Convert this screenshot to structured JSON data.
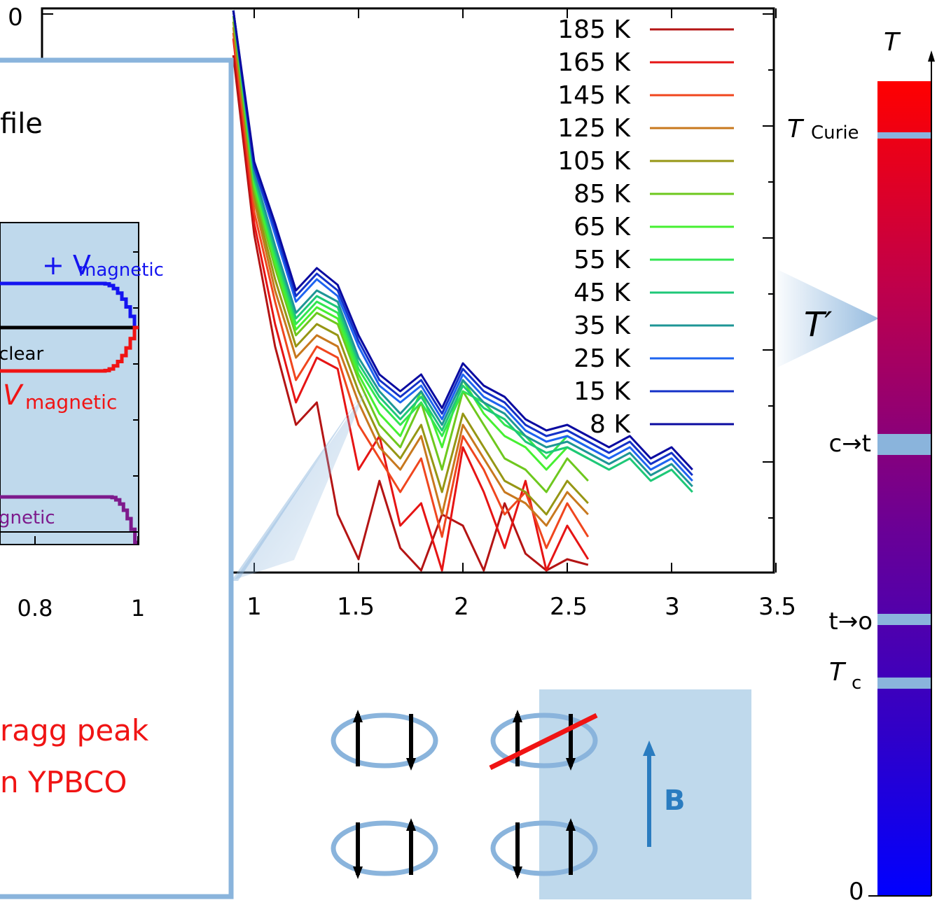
{
  "main_chart": {
    "x_tick_labels": [
      "1",
      "1.5",
      "2",
      "2.5",
      "3",
      "3.5"
    ],
    "y_tick_top": "0"
  },
  "chart_data": {
    "type": "line",
    "x_ticks": [
      1,
      1.5,
      2,
      2.5,
      3,
      3.5
    ],
    "xlim": [
      0.9,
      3.5
    ],
    "grid": false,
    "legend_position": "top-right",
    "series": [
      {
        "name": "185 K",
        "color": "#b41414",
        "x": [
          0.9,
          1.0,
          1.1,
          1.2,
          1.3,
          1.4,
          1.5,
          1.6,
          1.7,
          1.8,
          1.9,
          2.0,
          2.1,
          2.2,
          2.3,
          2.4,
          2.5,
          2.6
        ],
        "y": [
          0.92,
          0.6,
          0.4,
          0.26,
          0.3,
          0.1,
          0.02,
          0.16,
          0.04,
          0.0,
          0.1,
          0.08,
          0.0,
          0.12,
          0.03,
          0.0,
          0.02,
          0.01
        ]
      },
      {
        "name": "165 K",
        "color": "#e61414",
        "x": [
          0.9,
          1.0,
          1.1,
          1.2,
          1.3,
          1.4,
          1.5,
          1.6,
          1.7,
          1.8,
          1.9,
          2.0,
          2.1,
          2.2,
          2.3,
          2.4,
          2.5,
          2.6
        ],
        "y": [
          0.95,
          0.62,
          0.44,
          0.3,
          0.38,
          0.36,
          0.18,
          0.24,
          0.08,
          0.12,
          0.0,
          0.22,
          0.14,
          0.04,
          0.16,
          0.0,
          0.08,
          0.02
        ]
      },
      {
        "name": "145 K",
        "color": "#f0461e",
        "x": [
          0.9,
          1.0,
          1.1,
          1.2,
          1.3,
          1.4,
          1.5,
          1.6,
          1.7,
          1.8,
          1.9,
          2.0,
          2.1,
          2.2,
          2.3,
          2.4,
          2.5,
          2.6
        ],
        "y": [
          0.96,
          0.64,
          0.48,
          0.34,
          0.4,
          0.38,
          0.26,
          0.2,
          0.14,
          0.2,
          0.06,
          0.24,
          0.18,
          0.1,
          0.14,
          0.04,
          0.12,
          0.06
        ]
      },
      {
        "name": "125 K",
        "color": "#c8781e",
        "x": [
          0.9,
          1.0,
          1.1,
          1.2,
          1.3,
          1.4,
          1.5,
          1.6,
          1.7,
          1.8,
          1.9,
          2.0,
          2.1,
          2.2,
          2.3,
          2.4,
          2.5,
          2.6
        ],
        "y": [
          0.97,
          0.66,
          0.5,
          0.38,
          0.42,
          0.4,
          0.3,
          0.22,
          0.18,
          0.24,
          0.1,
          0.26,
          0.2,
          0.14,
          0.12,
          0.08,
          0.14,
          0.1
        ]
      },
      {
        "name": "105 K",
        "color": "#969614",
        "x": [
          0.9,
          1.0,
          1.1,
          1.2,
          1.3,
          1.4,
          1.5,
          1.6,
          1.7,
          1.8,
          1.9,
          2.0,
          2.1,
          2.2,
          2.3,
          2.4,
          2.5,
          2.6
        ],
        "y": [
          0.98,
          0.67,
          0.52,
          0.4,
          0.44,
          0.42,
          0.32,
          0.24,
          0.2,
          0.26,
          0.14,
          0.28,
          0.22,
          0.16,
          0.14,
          0.1,
          0.16,
          0.12
        ]
      },
      {
        "name": "85 K",
        "color": "#6ec81e",
        "x": [
          0.9,
          1.0,
          1.1,
          1.2,
          1.3,
          1.4,
          1.5,
          1.6,
          1.7,
          1.8,
          1.9,
          2.0,
          2.1,
          2.2,
          2.3,
          2.4,
          2.5,
          2.6
        ],
        "y": [
          0.99,
          0.68,
          0.54,
          0.42,
          0.46,
          0.44,
          0.34,
          0.26,
          0.22,
          0.3,
          0.18,
          0.32,
          0.26,
          0.2,
          0.18,
          0.14,
          0.2,
          0.16
        ]
      },
      {
        "name": "65 K",
        "color": "#46f032",
        "x": [
          0.9,
          1.0,
          1.1,
          1.2,
          1.3,
          1.4,
          1.5,
          1.6,
          1.7,
          1.8,
          1.9,
          2.0,
          2.1,
          2.2,
          2.3,
          2.4,
          2.5,
          2.6
        ],
        "y": [
          1.0,
          0.69,
          0.55,
          0.43,
          0.47,
          0.45,
          0.35,
          0.28,
          0.24,
          0.32,
          0.22,
          0.34,
          0.28,
          0.24,
          0.22,
          0.18,
          0.22,
          0.2
        ]
      },
      {
        "name": "55 K",
        "color": "#32e650",
        "x": [
          0.9,
          1.0,
          1.1,
          1.2,
          1.3,
          1.4,
          1.5,
          1.6,
          1.7,
          1.8,
          1.9,
          2.0,
          2.1,
          2.2,
          2.3,
          2.4,
          2.5,
          2.6
        ],
        "y": [
          1.0,
          0.7,
          0.56,
          0.44,
          0.48,
          0.46,
          0.36,
          0.3,
          0.26,
          0.3,
          0.24,
          0.32,
          0.3,
          0.26,
          0.24,
          0.2,
          0.24,
          0.22
        ]
      },
      {
        "name": "45 K",
        "color": "#1ec878",
        "x": [
          0.9,
          1.0,
          1.1,
          1.2,
          1.3,
          1.4,
          1.5,
          1.6,
          1.7,
          1.8,
          1.9,
          2.0,
          2.1,
          2.2,
          2.3,
          2.4,
          2.5,
          2.6,
          2.7,
          2.8,
          2.9,
          3.0,
          3.1
        ],
        "y": [
          1.0,
          0.7,
          0.57,
          0.45,
          0.49,
          0.47,
          0.37,
          0.31,
          0.27,
          0.31,
          0.25,
          0.33,
          0.29,
          0.27,
          0.23,
          0.21,
          0.22,
          0.2,
          0.18,
          0.2,
          0.16,
          0.18,
          0.14
        ]
      },
      {
        "name": "35 K",
        "color": "#1e9696",
        "x": [
          0.9,
          1.0,
          1.1,
          1.2,
          1.3,
          1.4,
          1.5,
          1.6,
          1.7,
          1.8,
          1.9,
          2.0,
          2.1,
          2.2,
          2.3,
          2.4,
          2.5,
          2.6,
          2.7,
          2.8,
          2.9,
          3.0,
          3.1
        ],
        "y": [
          1.0,
          0.71,
          0.58,
          0.46,
          0.5,
          0.48,
          0.38,
          0.32,
          0.28,
          0.32,
          0.26,
          0.34,
          0.3,
          0.28,
          0.24,
          0.22,
          0.23,
          0.21,
          0.19,
          0.21,
          0.17,
          0.19,
          0.15
        ]
      },
      {
        "name": "25 K",
        "color": "#1e64f0",
        "x": [
          0.9,
          1.0,
          1.1,
          1.2,
          1.3,
          1.4,
          1.5,
          1.6,
          1.7,
          1.8,
          1.9,
          2.0,
          2.1,
          2.2,
          2.3,
          2.4,
          2.5,
          2.6,
          2.7,
          2.8,
          2.9,
          3.0,
          3.1
        ],
        "y": [
          1.0,
          0.72,
          0.6,
          0.48,
          0.52,
          0.49,
          0.4,
          0.33,
          0.3,
          0.33,
          0.27,
          0.35,
          0.31,
          0.29,
          0.25,
          0.23,
          0.24,
          0.22,
          0.2,
          0.22,
          0.18,
          0.2,
          0.16
        ]
      },
      {
        "name": "15 K",
        "color": "#1432c8",
        "x": [
          0.9,
          1.0,
          1.1,
          1.2,
          1.3,
          1.4,
          1.5,
          1.6,
          1.7,
          1.8,
          1.9,
          2.0,
          2.1,
          2.2,
          2.3,
          2.4,
          2.5,
          2.6,
          2.7,
          2.8,
          2.9,
          3.0,
          3.1
        ],
        "y": [
          1.0,
          0.72,
          0.61,
          0.49,
          0.53,
          0.5,
          0.41,
          0.34,
          0.31,
          0.34,
          0.28,
          0.36,
          0.32,
          0.3,
          0.26,
          0.24,
          0.25,
          0.23,
          0.21,
          0.23,
          0.19,
          0.21,
          0.17
        ]
      },
      {
        "name": "8 K",
        "color": "#0a0aa0",
        "x": [
          0.9,
          1.0,
          1.1,
          1.2,
          1.3,
          1.4,
          1.5,
          1.6,
          1.7,
          1.8,
          1.9,
          2.0,
          2.1,
          2.2,
          2.3,
          2.4,
          2.5,
          2.6,
          2.7,
          2.8,
          2.9,
          3.0,
          3.1
        ],
        "y": [
          1.0,
          0.73,
          0.62,
          0.5,
          0.54,
          0.51,
          0.42,
          0.35,
          0.32,
          0.35,
          0.29,
          0.37,
          0.33,
          0.31,
          0.27,
          0.25,
          0.26,
          0.24,
          0.22,
          0.24,
          0.2,
          0.22,
          0.18
        ]
      }
    ]
  },
  "inset": {
    "title_fragment": "file",
    "label_sum": "+ V",
    "label_sum_sub": "magnetic",
    "label_nuclear": "clear",
    "label_diff_v": "V",
    "label_diff_sub": "magnetic",
    "label_magnetic": "gnetic",
    "x_tick_labels": [
      "0.8",
      "1"
    ],
    "caption_line1": "ragg peak",
    "caption_line2": "n YPBCO",
    "colors": {
      "blue": "#1414f0",
      "red": "#f01414",
      "purple": "#7d1a8c",
      "border": "#8ab4dc",
      "panel": "#bfd9ec"
    }
  },
  "temperature_bar": {
    "axis_label": "T",
    "marks": [
      {
        "label": "T",
        "sub": "Curie"
      },
      {
        "label": "c→t"
      },
      {
        "label": "t→o"
      },
      {
        "label": "T",
        "sub": "c"
      }
    ],
    "bottom_label": "0",
    "indicator_label": "T′",
    "gradient": [
      "#ff0000",
      "#c0004a",
      "#6a0096",
      "#3000c8",
      "#0000ff"
    ]
  },
  "diagram": {
    "field_label": "B",
    "field_color": "#2a7cc0"
  }
}
